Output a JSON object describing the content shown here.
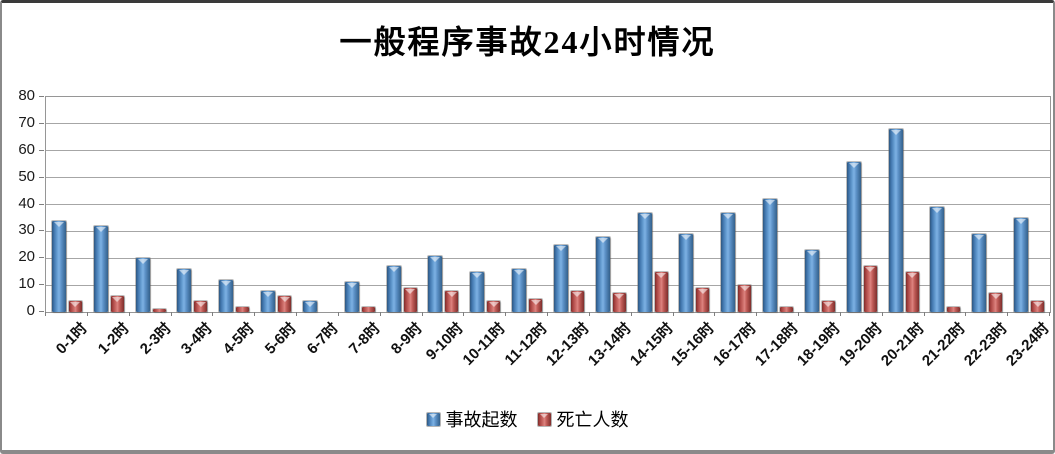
{
  "chart_data": {
    "type": "bar",
    "title": "一般程序事故24小时情况",
    "categories": [
      "0-1时",
      "1-2时",
      "2-3时",
      "3-4时",
      "4-5时",
      "5-6时",
      "6-7时",
      "7-8时",
      "8-9时",
      "9-10时",
      "10-11时",
      "11-12时",
      "12-13时",
      "13-14时",
      "14-15时",
      "15-16时",
      "16-17时",
      "17-18时",
      "18-19时",
      "19-20时",
      "20-21时",
      "21-22时",
      "22-23时",
      "23-24时"
    ],
    "series": [
      {
        "name": "事故起数",
        "color": "#4F81BD",
        "values": [
          34,
          32,
          20,
          16,
          12,
          8,
          4,
          11,
          17,
          21,
          15,
          16,
          25,
          28,
          37,
          29,
          37,
          42,
          23,
          56,
          68,
          39,
          29,
          35
        ]
      },
      {
        "name": "死亡人数",
        "color": "#C0504D",
        "values": [
          4,
          6,
          1,
          4,
          2,
          6,
          0,
          2,
          9,
          8,
          4,
          5,
          8,
          7,
          15,
          9,
          10,
          2,
          4,
          17,
          15,
          2,
          7,
          4
        ]
      }
    ],
    "xlabel": "",
    "ylabel": "",
    "ylim": [
      0,
      80
    ],
    "yticks": [
      0,
      10,
      20,
      30,
      40,
      50,
      60,
      70,
      80
    ],
    "grid": true,
    "legend_position": "bottom"
  }
}
